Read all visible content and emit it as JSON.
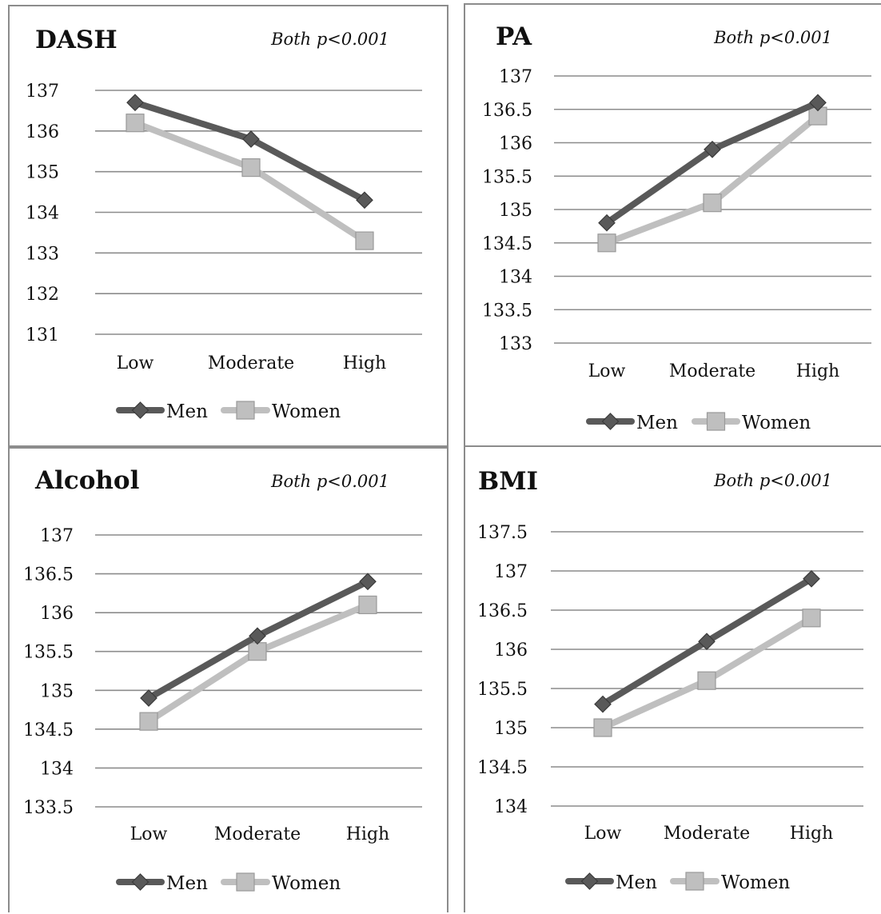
{
  "colors": {
    "men": "#595959",
    "women": "#bfbfbf",
    "grid": "#8c8c8c",
    "text": "#111111"
  },
  "legend": {
    "men": "Men",
    "women": "Women"
  },
  "chart_data": [
    {
      "type": "line",
      "title": "DASH",
      "annotation": "Both p<0.001",
      "categories": [
        "Low",
        "Moderate",
        "High"
      ],
      "ylim": [
        131,
        137
      ],
      "yticks": [
        "131",
        "132",
        "133",
        "134",
        "135",
        "136",
        "137"
      ],
      "grid": true,
      "legend_position": "bottom",
      "series": [
        {
          "name": "Men",
          "marker": "diamond",
          "values": [
            136.7,
            135.8,
            134.3
          ]
        },
        {
          "name": "Women",
          "marker": "square",
          "values": [
            136.2,
            135.1,
            133.3
          ]
        }
      ]
    },
    {
      "type": "line",
      "title": "PA",
      "annotation": "Both p<0.001",
      "categories": [
        "Low",
        "Moderate",
        "High"
      ],
      "ylim": [
        133,
        137
      ],
      "yticks": [
        "133",
        "133.5",
        "134",
        "134.5",
        "135",
        "135.5",
        "136",
        "136.5",
        "137"
      ],
      "grid": true,
      "legend_position": "bottom",
      "series": [
        {
          "name": "Men",
          "marker": "diamond",
          "values": [
            134.8,
            135.9,
            136.6
          ]
        },
        {
          "name": "Women",
          "marker": "square",
          "values": [
            134.5,
            135.1,
            136.4
          ]
        }
      ]
    },
    {
      "type": "line",
      "title": "Alcohol",
      "annotation": "Both p<0.001",
      "categories": [
        "Low",
        "Moderate",
        "High"
      ],
      "ylim": [
        133.5,
        137
      ],
      "yticks": [
        "133.5",
        "134",
        "134.5",
        "135",
        "135.5",
        "136",
        "136.5",
        "137"
      ],
      "grid": true,
      "legend_position": "bottom",
      "series": [
        {
          "name": "Men",
          "marker": "diamond",
          "values": [
            134.9,
            135.7,
            136.4
          ]
        },
        {
          "name": "Women",
          "marker": "square",
          "values": [
            134.6,
            135.5,
            136.1
          ]
        }
      ]
    },
    {
      "type": "line",
      "title": "BMI",
      "annotation": "Both p<0.001",
      "categories": [
        "Low",
        "Moderate",
        "High"
      ],
      "ylim": [
        134,
        137.5
      ],
      "yticks": [
        "134",
        "134.5",
        "135",
        "135.5",
        "136",
        "136.5",
        "137",
        "137.5"
      ],
      "grid": true,
      "legend_position": "bottom",
      "series": [
        {
          "name": "Men",
          "marker": "diamond",
          "values": [
            135.3,
            136.1,
            136.9
          ]
        },
        {
          "name": "Women",
          "marker": "square",
          "values": [
            135.0,
            135.6,
            136.4
          ]
        }
      ]
    }
  ]
}
